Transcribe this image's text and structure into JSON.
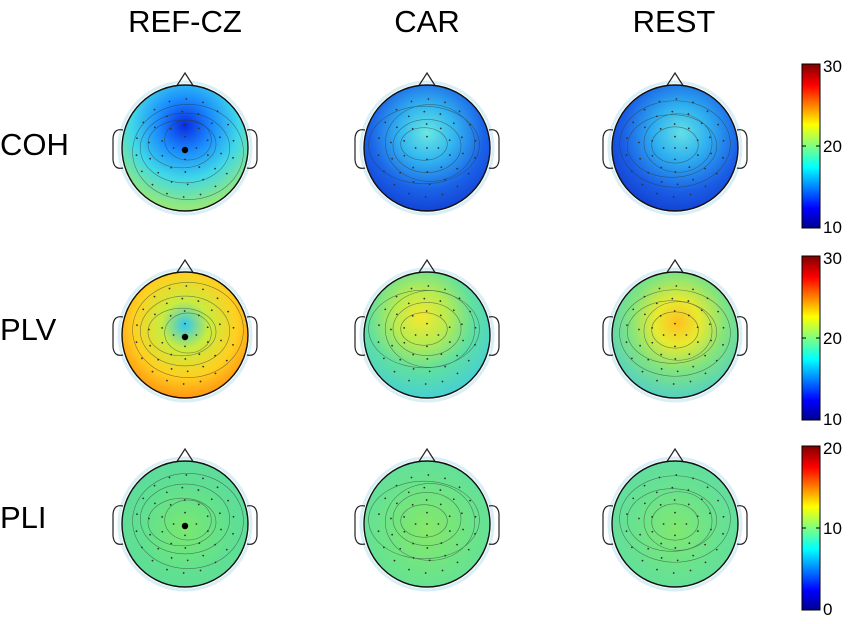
{
  "column_titles": [
    "REF-CZ",
    "CAR",
    "REST"
  ],
  "rows": [
    {
      "label": "COH",
      "colorbar": {
        "min_label": "10",
        "mid_label": "20",
        "max_label": "30",
        "min": 10,
        "max": 30
      },
      "maps": [
        {
          "level": "low-blue frontal, deep blue focus at Cz, green-yellow posterior",
          "reference_dot": true
        },
        {
          "level": "blue overall, cyan center",
          "reference_dot": false
        },
        {
          "level": "blue overall, cyan center",
          "reference_dot": false
        }
      ]
    },
    {
      "label": "PLV",
      "colorbar": {
        "min_label": "10",
        "mid_label": "20",
        "max_label": "30",
        "min": 10,
        "max": 30
      },
      "maps": [
        {
          "level": "yellow-orange, red posterior, cyan focus at Cz",
          "reference_dot": true
        },
        {
          "level": "green-cyan, yellow center",
          "reference_dot": false
        },
        {
          "level": "green-cyan, yellow-orange center",
          "reference_dot": false
        }
      ]
    },
    {
      "label": "PLI",
      "colorbar": {
        "min_label": "0",
        "mid_label": "10",
        "max_label": "20",
        "min": 0,
        "max": 20
      },
      "maps": [
        {
          "level": "uniform green, cyan focus at Cz",
          "reference_dot": true
        },
        {
          "level": "uniform green",
          "reference_dot": false
        },
        {
          "level": "uniform green",
          "reference_dot": false
        }
      ]
    }
  ],
  "colors": {
    "jet": [
      "#00008f",
      "#0000ff",
      "#0080ff",
      "#00ffff",
      "#80ff80",
      "#ffff00",
      "#ff8000",
      "#ff0000",
      "#800000"
    ]
  }
}
